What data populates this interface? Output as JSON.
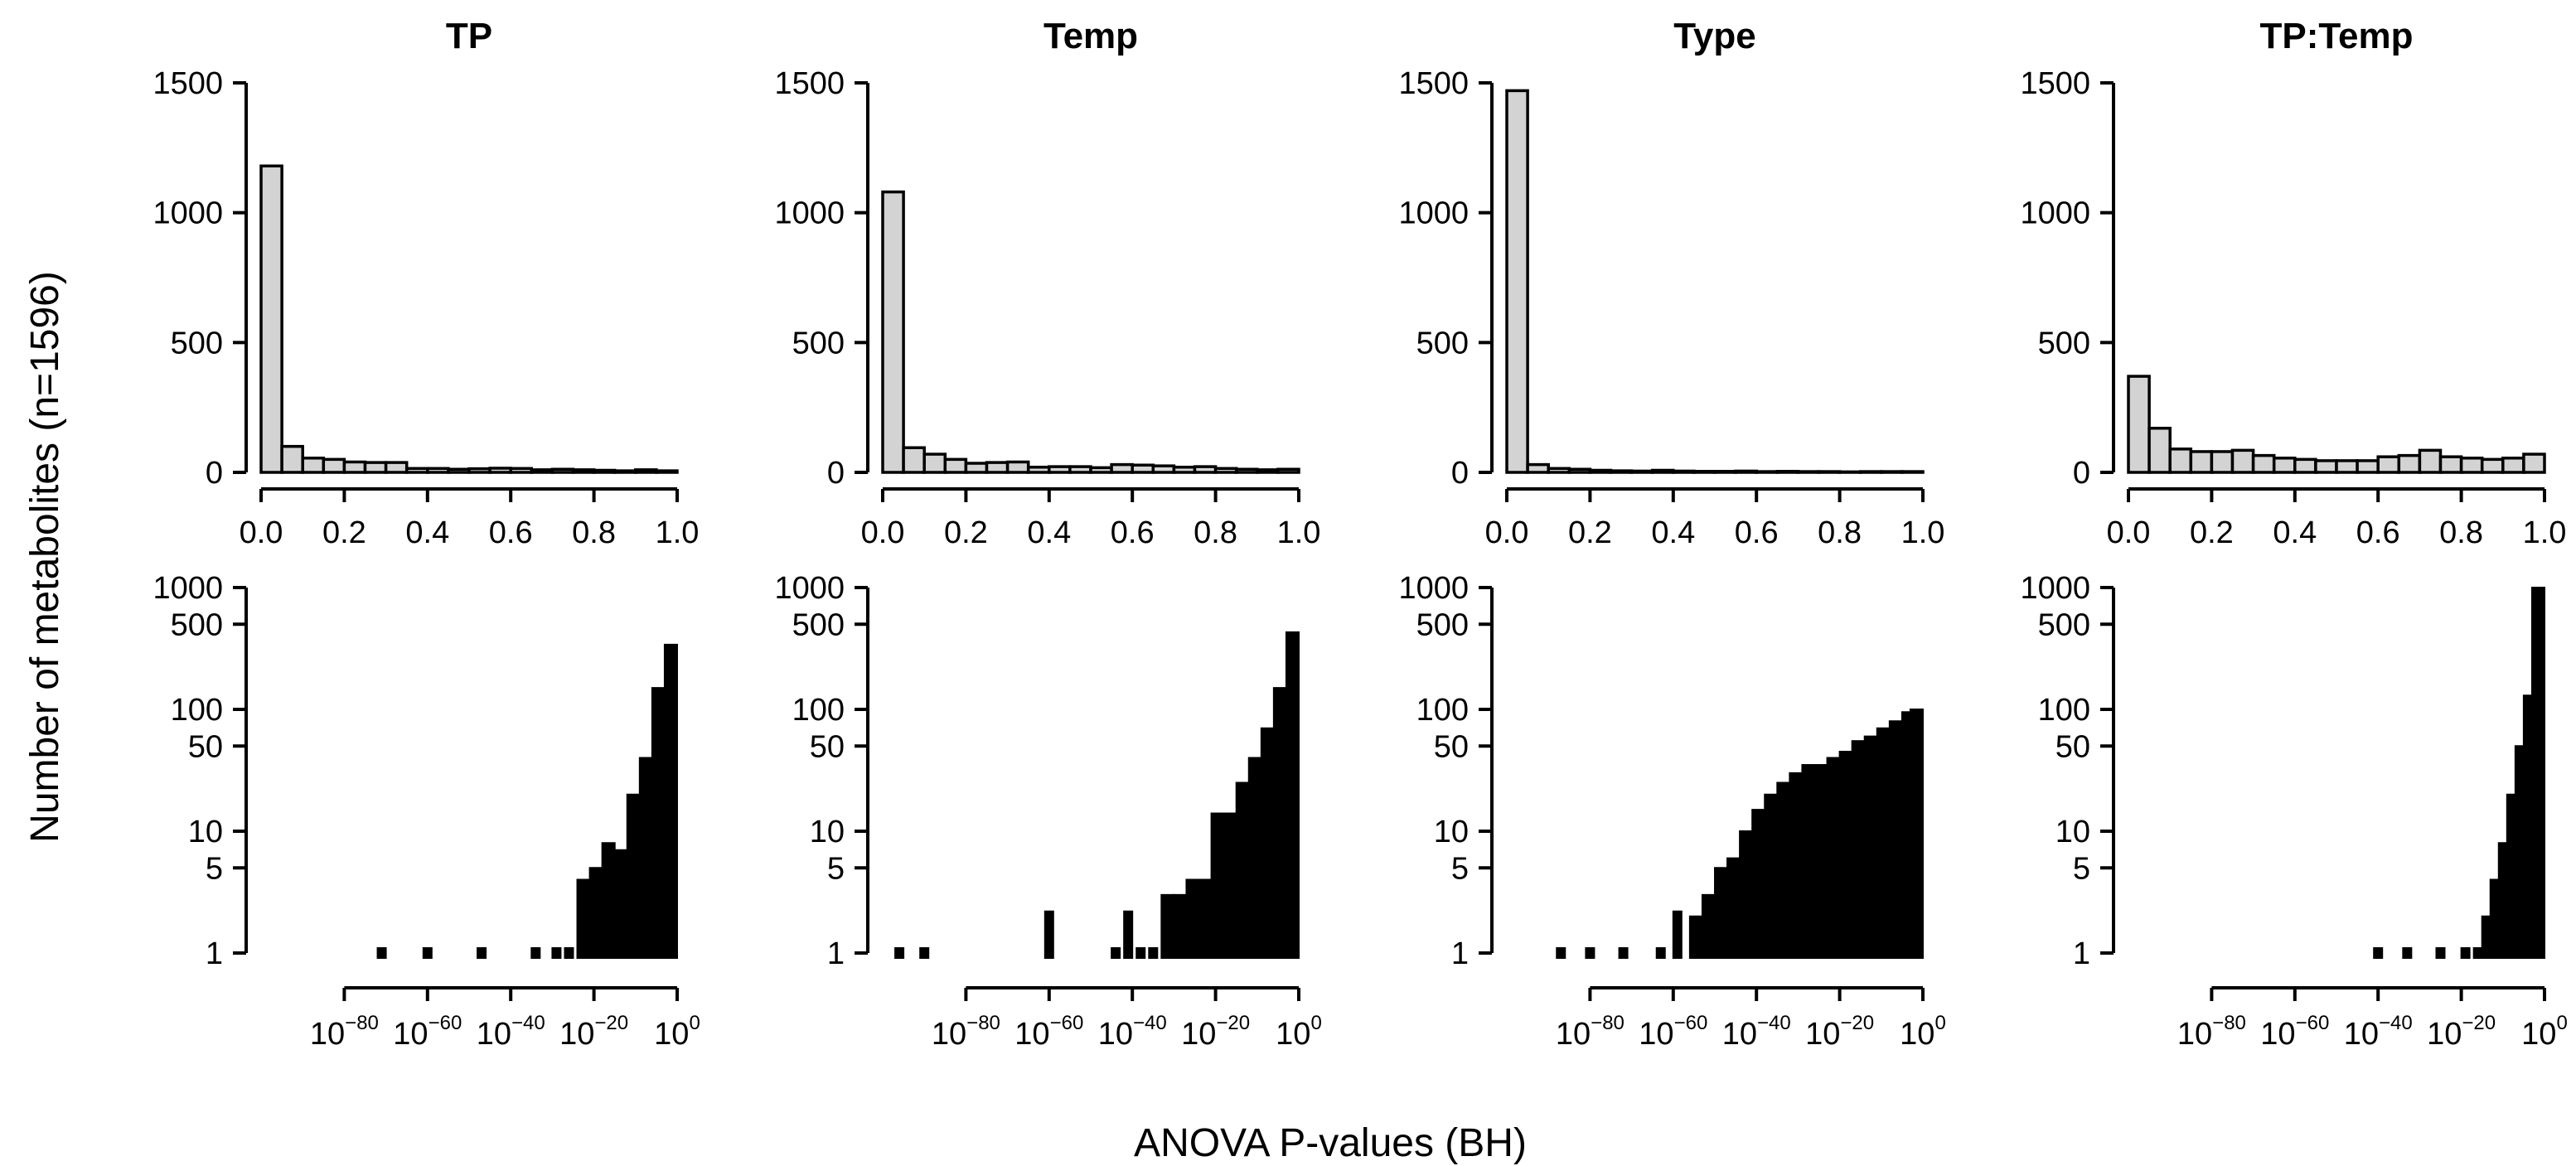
{
  "figure": {
    "ylabel": "Number of metabolites (n=1596)",
    "xlabel": "ANOVA P-values (BH)"
  },
  "chart_data": [
    {
      "type": "bar",
      "row": "top",
      "title": "TP",
      "xlim": [
        0,
        1
      ],
      "ylim": [
        0,
        1500
      ],
      "bin_width": 0.05,
      "xticks": [
        "0.0",
        "0.2",
        "0.4",
        "0.6",
        "0.8",
        "1.0"
      ],
      "yticks": [
        "0",
        "500",
        "1000",
        "1500"
      ],
      "values": [
        1180,
        100,
        55,
        50,
        40,
        38,
        38,
        15,
        15,
        12,
        14,
        16,
        15,
        10,
        12,
        10,
        8,
        6,
        10,
        6
      ]
    },
    {
      "type": "bar",
      "row": "top",
      "title": "Temp",
      "xlim": [
        0,
        1
      ],
      "ylim": [
        0,
        1500
      ],
      "bin_width": 0.05,
      "xticks": [
        "0.0",
        "0.2",
        "0.4",
        "0.6",
        "0.8",
        "1.0"
      ],
      "yticks": [
        "0",
        "500",
        "1000",
        "1500"
      ],
      "values": [
        1080,
        95,
        70,
        50,
        35,
        38,
        40,
        20,
        22,
        22,
        18,
        30,
        28,
        25,
        20,
        22,
        15,
        12,
        10,
        12
      ]
    },
    {
      "type": "bar",
      "row": "top",
      "title": "Type",
      "xlim": [
        0,
        1
      ],
      "ylim": [
        0,
        1500
      ],
      "bin_width": 0.05,
      "xticks": [
        "0.0",
        "0.2",
        "0.4",
        "0.6",
        "0.8",
        "1.0"
      ],
      "yticks": [
        "0",
        "500",
        "1000",
        "1500"
      ],
      "values": [
        1470,
        30,
        15,
        12,
        8,
        6,
        5,
        8,
        5,
        4,
        4,
        5,
        3,
        4,
        3,
        3,
        2,
        3,
        3,
        3
      ]
    },
    {
      "type": "bar",
      "row": "top",
      "title": "TP:Temp",
      "xlim": [
        0,
        1
      ],
      "ylim": [
        0,
        1500
      ],
      "bin_width": 0.05,
      "xticks": [
        "0.0",
        "0.2",
        "0.4",
        "0.6",
        "0.8",
        "1.0"
      ],
      "yticks": [
        "0",
        "500",
        "1000",
        "1500"
      ],
      "values": [
        370,
        170,
        90,
        80,
        80,
        85,
        65,
        55,
        50,
        45,
        45,
        45,
        60,
        65,
        85,
        60,
        55,
        50,
        55,
        70
      ]
    },
    {
      "type": "bar",
      "row": "bottom",
      "title": "TP",
      "scale": "log",
      "xlim_exponent": [
        -100,
        0
      ],
      "ylim": [
        1,
        1000
      ],
      "xticks": [
        {
          "exp": "-80"
        },
        {
          "exp": "-60"
        },
        {
          "exp": "-40"
        },
        {
          "exp": "-20"
        },
        {
          "exp": "0"
        }
      ],
      "yticks": [
        "1",
        "5",
        "10",
        "50",
        "100",
        "500",
        "1000"
      ],
      "points": [
        [
          -71,
          1
        ],
        [
          -60,
          1
        ],
        [
          -47,
          1
        ],
        [
          -34,
          1
        ],
        [
          -29,
          1
        ],
        [
          -26,
          1
        ],
        [
          -23,
          1
        ]
      ],
      "bins": [
        [
          -21,
          4
        ],
        [
          -18,
          5
        ],
        [
          -15,
          8
        ],
        [
          -12,
          7
        ],
        [
          -9,
          20
        ],
        [
          -6,
          40
        ],
        [
          -3,
          150
        ],
        [
          0,
          340
        ]
      ]
    },
    {
      "type": "bar",
      "row": "bottom",
      "title": "Temp",
      "scale": "log",
      "xlim_exponent": [
        -100,
        0
      ],
      "ylim": [
        1,
        1000
      ],
      "xticks": [
        {
          "exp": "-80"
        },
        {
          "exp": "-60"
        },
        {
          "exp": "-40"
        },
        {
          "exp": "-20"
        },
        {
          "exp": "0"
        }
      ],
      "yticks": [
        "1",
        "5",
        "10",
        "50",
        "100",
        "500",
        "1000"
      ],
      "points": [
        [
          -96,
          1
        ],
        [
          -90,
          1
        ],
        [
          -60,
          2
        ],
        [
          -44,
          1
        ],
        [
          -41,
          2
        ],
        [
          -38,
          1
        ],
        [
          -35,
          1
        ]
      ],
      "bins": [
        [
          -30,
          3
        ],
        [
          -27,
          3
        ],
        [
          -24,
          4
        ],
        [
          -21,
          4
        ],
        [
          -18,
          14
        ],
        [
          -15,
          14
        ],
        [
          -12,
          25
        ],
        [
          -9,
          40
        ],
        [
          -6,
          70
        ],
        [
          -3,
          150
        ],
        [
          0,
          430
        ]
      ]
    },
    {
      "type": "bar",
      "row": "bottom",
      "title": "Type",
      "scale": "log",
      "xlim_exponent": [
        -100,
        0
      ],
      "ylim": [
        1,
        1000
      ],
      "xticks": [
        {
          "exp": "-80"
        },
        {
          "exp": "-60"
        },
        {
          "exp": "-40"
        },
        {
          "exp": "-20"
        },
        {
          "exp": "0"
        }
      ],
      "yticks": [
        "1",
        "5",
        "10",
        "50",
        "100",
        "500",
        "1000"
      ],
      "points": [
        [
          -87,
          1
        ],
        [
          -80,
          1
        ],
        [
          -72,
          1
        ],
        [
          -63,
          1
        ],
        [
          -59,
          2
        ]
      ],
      "bins": [
        [
          -53,
          2
        ],
        [
          -50,
          3
        ],
        [
          -47,
          5
        ],
        [
          -44,
          6
        ],
        [
          -41,
          10
        ],
        [
          -38,
          15
        ],
        [
          -35,
          20
        ],
        [
          -32,
          25
        ],
        [
          -29,
          30
        ],
        [
          -26,
          35
        ],
        [
          -23,
          35
        ],
        [
          -20,
          40
        ],
        [
          -17,
          45
        ],
        [
          -14,
          55
        ],
        [
          -11,
          60
        ],
        [
          -8,
          70
        ],
        [
          -5,
          80
        ],
        [
          -2,
          95
        ],
        [
          0,
          100
        ]
      ]
    },
    {
      "type": "bar",
      "row": "bottom",
      "title": "TP:Temp",
      "scale": "log",
      "xlim_exponent": [
        -100,
        0
      ],
      "ylim": [
        1,
        1000
      ],
      "xticks": [
        {
          "exp": "-80"
        },
        {
          "exp": "-60"
        },
        {
          "exp": "-40"
        },
        {
          "exp": "-20"
        },
        {
          "exp": "0"
        }
      ],
      "yticks": [
        "1",
        "5",
        "10",
        "50",
        "100",
        "500",
        "1000"
      ],
      "points": [
        [
          -40,
          1
        ],
        [
          -33,
          1
        ],
        [
          -25,
          1
        ],
        [
          -19,
          1
        ],
        [
          -16,
          1
        ]
      ],
      "bins": [
        [
          -12,
          2
        ],
        [
          -10,
          4
        ],
        [
          -8,
          8
        ],
        [
          -6,
          20
        ],
        [
          -4,
          50
        ],
        [
          -2,
          130
        ],
        [
          0,
          1000
        ]
      ]
    }
  ]
}
